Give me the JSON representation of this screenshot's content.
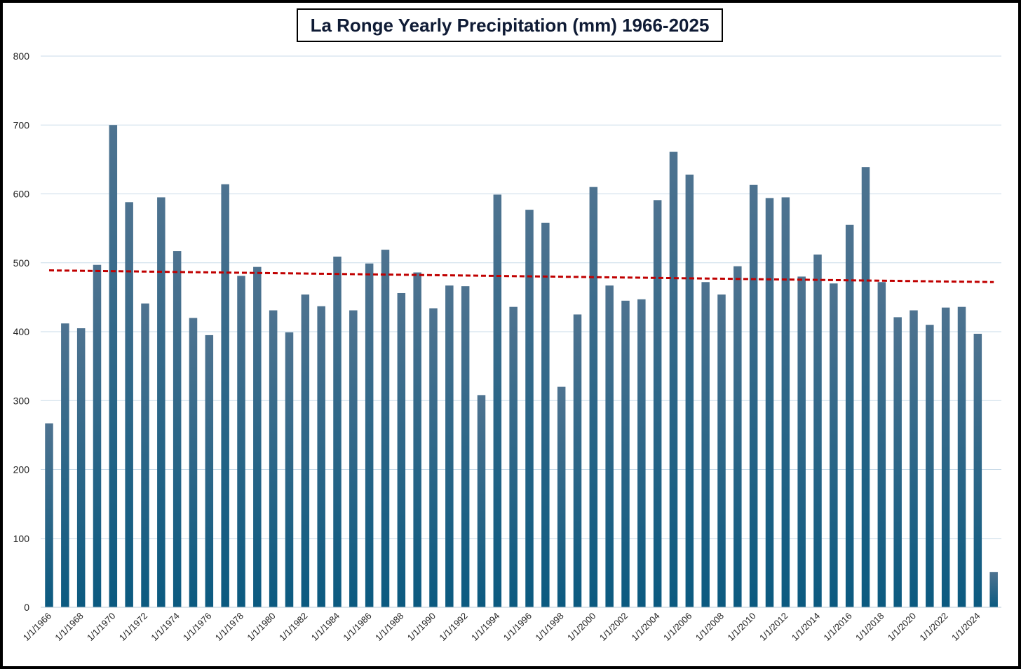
{
  "chart_data": {
    "type": "bar",
    "title": "La Ronge Yearly Precipitation (mm) 1966-2025",
    "xlabel": "",
    "ylabel": "",
    "ylim": [
      0,
      800
    ],
    "yticks": [
      "0",
      "100",
      "200",
      "300",
      "400",
      "500",
      "600",
      "700",
      "800"
    ],
    "grid": true,
    "categories": [
      "1/1/1966",
      "1/1/1967",
      "1/1/1968",
      "1/1/1969",
      "1/1/1970",
      "1/1/1971",
      "1/1/1972",
      "1/1/1973",
      "1/1/1974",
      "1/1/1975",
      "1/1/1976",
      "1/1/1977",
      "1/1/1978",
      "1/1/1979",
      "1/1/1980",
      "1/1/1981",
      "1/1/1982",
      "1/1/1983",
      "1/1/1984",
      "1/1/1985",
      "1/1/1986",
      "1/1/1987",
      "1/1/1988",
      "1/1/1989",
      "1/1/1990",
      "1/1/1991",
      "1/1/1992",
      "1/1/1993",
      "1/1/1994",
      "1/1/1995",
      "1/1/1996",
      "1/1/1997",
      "1/1/1998",
      "1/1/1999",
      "1/1/2000",
      "1/1/2001",
      "1/1/2002",
      "1/1/2003",
      "1/1/2004",
      "1/1/2005",
      "1/1/2006",
      "1/1/2007",
      "1/1/2008",
      "1/1/2009",
      "1/1/2010",
      "1/1/2011",
      "1/1/2012",
      "1/1/2013",
      "1/1/2014",
      "1/1/2015",
      "1/1/2016",
      "1/1/2017",
      "1/1/2018",
      "1/1/2019",
      "1/1/2020",
      "1/1/2021",
      "1/1/2022",
      "1/1/2023",
      "1/1/2024",
      "1/1/2025"
    ],
    "series": [
      {
        "name": "Yearly Precipitation (mm)",
        "values": [
          267,
          412,
          405,
          497,
          700,
          588,
          441,
          595,
          517,
          420,
          395,
          614,
          481,
          494,
          431,
          399,
          454,
          437,
          509,
          431,
          499,
          519,
          456,
          486,
          434,
          467,
          466,
          308,
          599,
          436,
          577,
          558,
          320,
          425,
          610,
          467,
          445,
          447,
          591,
          661,
          628,
          472,
          454,
          495,
          613,
          594,
          595,
          480,
          512,
          470,
          555,
          639,
          472,
          421,
          431,
          410,
          435,
          436,
          397,
          51
        ]
      }
    ],
    "trendline": {
      "name": "Linear trend",
      "start": 489,
      "end": 472,
      "style": "dashed"
    },
    "colors": {
      "bar_top": "#4e7390",
      "bar_bottom": "#0b5a80",
      "trend": "#c00000",
      "grid": "#c9dbe8",
      "title_text": "#0f1b35"
    }
  }
}
